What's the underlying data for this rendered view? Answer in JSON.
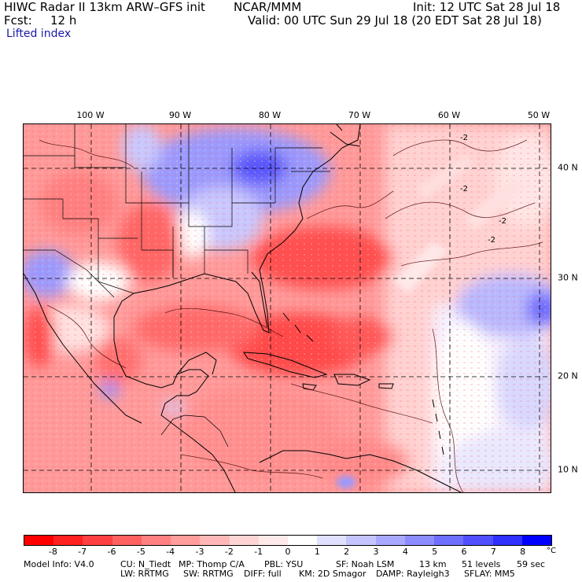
{
  "header": {
    "title_left": "HIWC Radar II 13km ARW–GFS init",
    "center_label": "NCAR/MMM",
    "init": "Init: 12 UTC Sat 28 Jul 18",
    "fcst_label": "Fcst:",
    "fcst_value": "12 h",
    "valid": "Valid: 00 UTC Sun 29 Jul 18 (20 EDT Sat 28 Jul 18)",
    "field_name": "Lifted index"
  },
  "map": {
    "longitude_labels": [
      "100 W",
      "90 W",
      "80 W",
      "70 W",
      "60 W",
      "50 W"
    ],
    "latitude_labels": [
      "40 N",
      "30 N",
      "20 N",
      "10 N"
    ],
    "contour_labels": [
      "-2",
      "-2",
      "-2",
      "-2"
    ]
  },
  "colorbar": {
    "ticks": [
      "-8",
      "-7",
      "-6",
      "-5",
      "-4",
      "-3",
      "-2",
      "-1",
      "0",
      "1",
      "2",
      "3",
      "4",
      "5",
      "6",
      "7",
      "8"
    ],
    "unit": "°C",
    "colors": [
      "#ff0000",
      "#ff2020",
      "#ff4040",
      "#ff6060",
      "#ff8080",
      "#ff9c9c",
      "#ffb8b8",
      "#ffd4d4",
      "#ffeaea",
      "#ffffff",
      "#e0e0ff",
      "#c4c4ff",
      "#a8a8ff",
      "#8c8cff",
      "#6e6eff",
      "#5050ff",
      "#3030ff",
      "#0000ff"
    ]
  },
  "footer": {
    "line1_model": "Model Info: V4.0",
    "line1_cu": "CU: N_Tiedt",
    "line1_mp": "MP: Thomp C/A",
    "line1_pbl": "PBL: YSU",
    "line1_sf": "SF: Noah LSM",
    "line1_res": "13 km",
    "line1_levels": "51 levels",
    "line1_dt": "59 sec",
    "line2_lw": "LW: RRTMG",
    "line2_sw": "SW: RRTMG",
    "line2_diff": "DIFF: full",
    "line2_km": "KM: 2D Smagor",
    "line2_damp": "DAMP: Rayleigh3",
    "line2_sflay": "SFLAY: MM5"
  }
}
